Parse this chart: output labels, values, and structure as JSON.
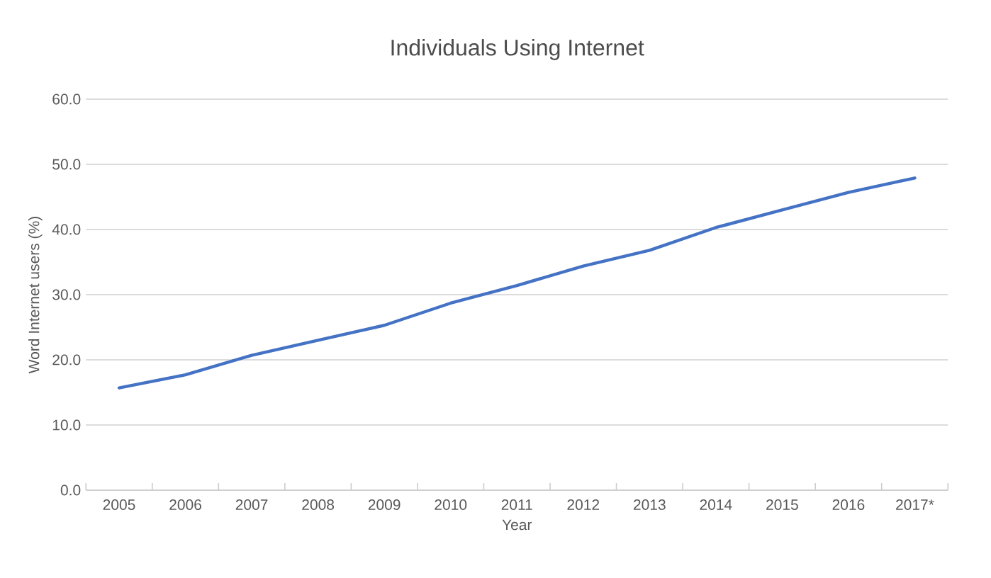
{
  "chart_data": {
    "type": "line",
    "title": "Individuals Using Internet",
    "xlabel": "Year",
    "ylabel": "Word Internet users (%)",
    "categories": [
      "2005",
      "2006",
      "2007",
      "2008",
      "2009",
      "2010",
      "2011",
      "2012",
      "2013",
      "2014",
      "2015",
      "2016",
      "2017*"
    ],
    "series": [
      {
        "color": "#4472c4",
        "values": [
          15.7,
          17.7,
          20.7,
          23.0,
          25.3,
          28.7,
          31.4,
          34.4,
          36.8,
          40.3,
          43.0,
          45.7,
          47.9
        ]
      }
    ],
    "ylim": [
      0,
      60
    ],
    "yticks": [
      {
        "value": 0,
        "label": "0.0"
      },
      {
        "value": 10,
        "label": "10.0"
      },
      {
        "value": 20,
        "label": "20.0"
      },
      {
        "value": 30,
        "label": "30.0"
      },
      {
        "value": 40,
        "label": "40.0"
      },
      {
        "value": 50,
        "label": "50.0"
      },
      {
        "value": 60,
        "label": "60.0"
      }
    ],
    "grid": "y",
    "marker": "none",
    "line_style": "solid"
  }
}
